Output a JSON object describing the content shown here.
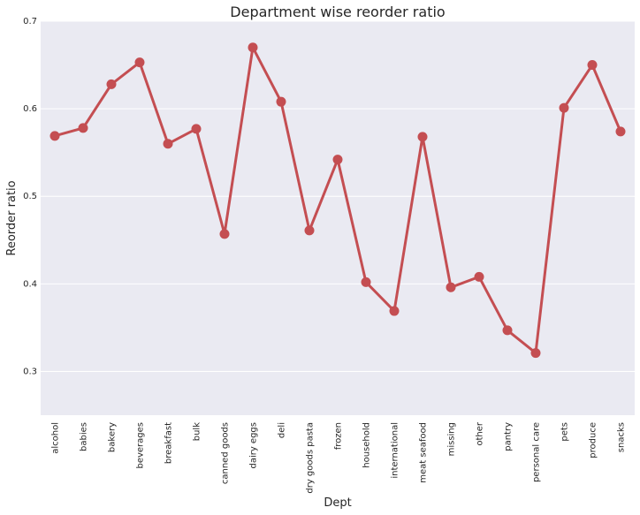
{
  "chart_data": {
    "type": "line",
    "title": "Department wise reorder ratio",
    "xlabel": "Dept",
    "ylabel": "Reorder ratio",
    "ylim": [
      0.25,
      0.7
    ],
    "yticks": [
      "0.3",
      "0.4",
      "0.5",
      "0.6",
      "0.7"
    ],
    "grid": true,
    "categories": [
      "alcohol",
      "babies",
      "bakery",
      "beverages",
      "breakfast",
      "bulk",
      "canned goods",
      "dairy eggs",
      "deli",
      "dry goods pasta",
      "frozen",
      "household",
      "international",
      "meat seafood",
      "missing",
      "other",
      "pantry",
      "personal care",
      "pets",
      "produce",
      "snacks"
    ],
    "series": [
      {
        "values": [
          0.569,
          0.578,
          0.628,
          0.653,
          0.56,
          0.577,
          0.457,
          0.67,
          0.608,
          0.461,
          0.542,
          0.402,
          0.369,
          0.568,
          0.396,
          0.408,
          0.347,
          0.321,
          0.601,
          0.65,
          0.574
        ],
        "color": "#C44E52"
      }
    ],
    "style": {
      "background": "#EAEAF2",
      "grid_color": "#ffffff"
    }
  }
}
